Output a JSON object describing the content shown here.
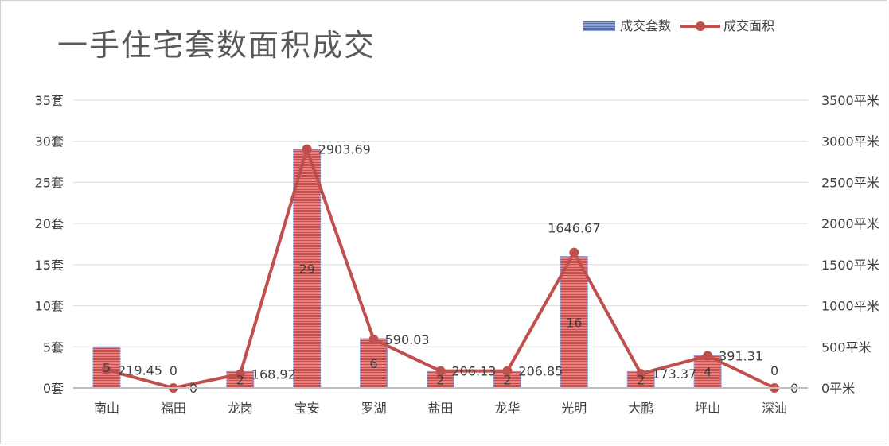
{
  "title": "一手住宅套数面积成交",
  "legend": [
    {
      "name": "成交套数",
      "type": "bar"
    },
    {
      "name": "成交面积",
      "type": "line"
    }
  ],
  "colors": {
    "bar": "#c0504d",
    "bar_stripe": "#8aa0d8",
    "line": "#c0504d",
    "grid": "#d9d9d9",
    "axis_text": "#404040",
    "label_text": "#404040"
  },
  "chart_data": {
    "type": "bar",
    "categories": [
      "南山",
      "福田",
      "龙岗",
      "宝安",
      "罗湖",
      "盐田",
      "龙华",
      "光明",
      "大鹏",
      "坪山",
      "深汕"
    ],
    "series": [
      {
        "name": "成交套数",
        "type": "bar",
        "axis": "left",
        "values": [
          5,
          0,
          2,
          29,
          6,
          2,
          2,
          16,
          2,
          4,
          0
        ]
      },
      {
        "name": "成交面积",
        "type": "line",
        "axis": "right",
        "values": [
          219.45,
          0,
          168.92,
          2903.69,
          590.03,
          206.13,
          206.85,
          1646.67,
          173.37,
          391.31,
          0
        ]
      }
    ],
    "bar_labels": [
      "5",
      "0",
      "2",
      "29",
      "6",
      "2",
      "2",
      "16",
      "2",
      "4",
      "0"
    ],
    "line_labels": [
      "219.45",
      "0",
      "168.92",
      "2903.69",
      "590.03",
      "206.13",
      "206.85",
      "1646.67",
      "173.37",
      "391.31",
      "0"
    ],
    "left_axis": {
      "ylim": [
        0,
        35
      ],
      "ticks": [
        "0套",
        "5套",
        "10套",
        "15套",
        "20套",
        "25套",
        "30套",
        "35套"
      ]
    },
    "right_axis": {
      "ylim": [
        0,
        3500
      ],
      "ticks": [
        "0平米",
        "500平米",
        "1000平米",
        "1500平米",
        "2000平米",
        "2500平米",
        "3000平米",
        "3500平米"
      ]
    },
    "grid": true,
    "legend_position": "top-right"
  }
}
